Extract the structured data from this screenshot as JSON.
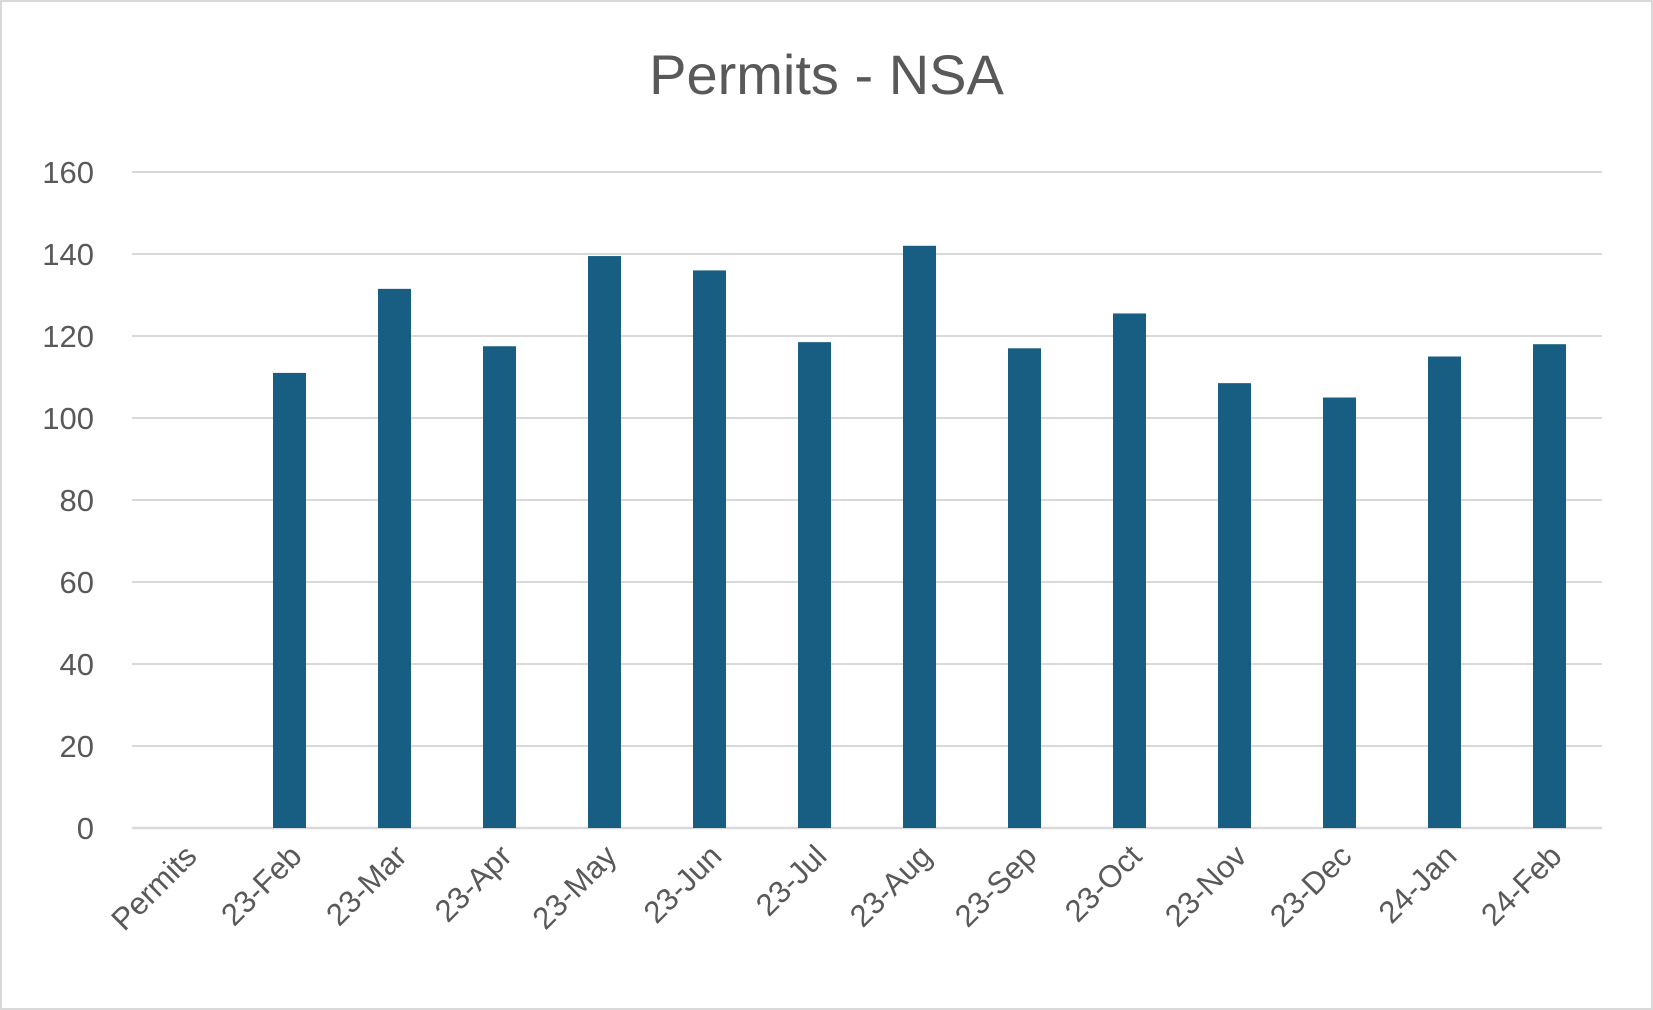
{
  "chart_data": {
    "type": "bar",
    "title": "Permits - NSA",
    "xlabel": "",
    "ylabel": "",
    "categories": [
      "Permits",
      "23-Feb",
      "23-Mar",
      "23-Apr",
      "23-May",
      "23-Jun",
      "23-Jul",
      "23-Aug",
      "23-Sep",
      "23-Oct",
      "23-Nov",
      "23-Dec",
      "24-Jan",
      "24-Feb"
    ],
    "values": [
      null,
      111,
      131.5,
      117.5,
      139.5,
      136,
      118.5,
      142,
      117,
      125.5,
      108.5,
      105,
      115,
      118
    ],
    "ylim": [
      0,
      160
    ],
    "yticks": [
      0,
      20,
      40,
      60,
      80,
      100,
      120,
      140,
      160
    ],
    "grid": true,
    "legend": "none",
    "colors": {
      "bar": "#175e82",
      "grid": "#d9d9d9",
      "text": "#595959"
    }
  }
}
